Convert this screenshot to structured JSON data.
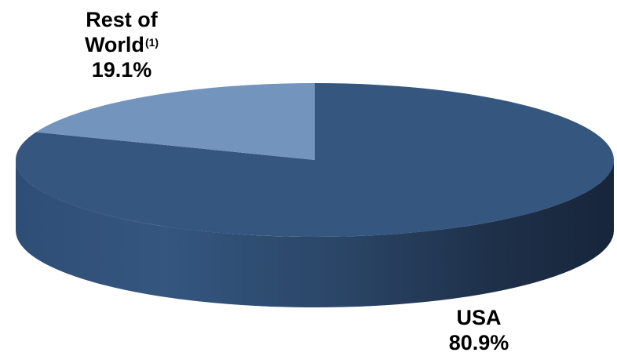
{
  "chart_data": {
    "type": "pie",
    "style": "3d",
    "slices": [
      {
        "label": "USA",
        "value": 80.9,
        "value_label": "80.9%",
        "color": "#34567f"
      },
      {
        "label": "Rest of World",
        "footnote_marker": "(1)",
        "value": 19.1,
        "value_label": "19.1%",
        "color": "#7394bc"
      }
    ]
  }
}
